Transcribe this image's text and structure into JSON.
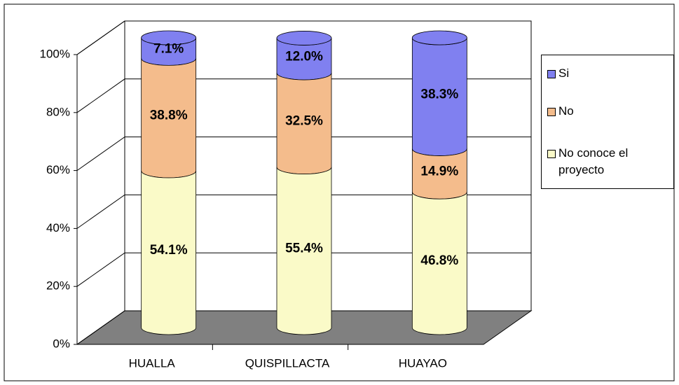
{
  "chart_data": {
    "type": "stacked-bar-3d",
    "categories": [
      "HUALLA",
      "QUISPILLACTA",
      "HUAYAO"
    ],
    "series": [
      {
        "name": "No conoce el proyecto",
        "color": "#fafac8",
        "values": [
          54.1,
          55.4,
          46.8
        ],
        "value_labels": [
          "54.1%",
          "55.4%",
          "46.8%"
        ]
      },
      {
        "name": "No",
        "color": "#f4bc8c",
        "values": [
          38.8,
          32.5,
          14.9
        ],
        "value_labels": [
          "38.8%",
          "32.5%",
          "14.9%"
        ]
      },
      {
        "name": "Si",
        "color": "#8080f0",
        "values": [
          7.1,
          12.0,
          38.3
        ],
        "value_labels": [
          "7.1%",
          "12.0%",
          "38.3%"
        ]
      }
    ],
    "ylim": [
      0,
      100
    ],
    "yticks": [
      {
        "value": 0,
        "label": "0%"
      },
      {
        "value": 20,
        "label": "20%"
      },
      {
        "value": 40,
        "label": "40%"
      },
      {
        "value": 60,
        "label": "60%"
      },
      {
        "value": 80,
        "label": "80%"
      },
      {
        "value": 100,
        "label": "100%"
      }
    ],
    "grid": true,
    "legend": "right"
  }
}
